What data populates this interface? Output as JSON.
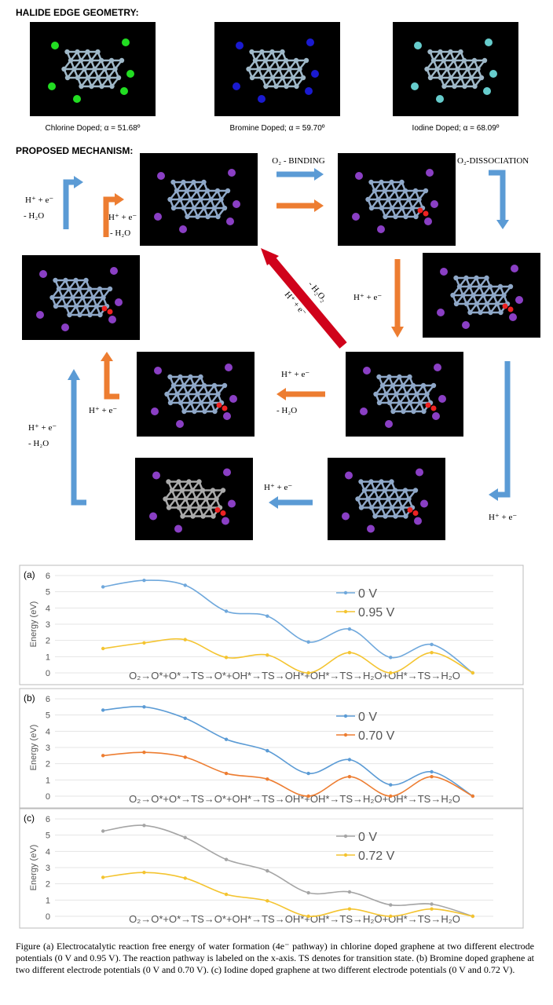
{
  "header": {
    "title": "HALIDE EDGE GEOMETRY:",
    "panels": [
      {
        "caption": "Chlorine Doped; α = 51.68º"
      },
      {
        "caption": "Bromine Doped; α = 59.70º"
      },
      {
        "caption": "Iodine Doped; α = 68.09º"
      }
    ]
  },
  "mechanism": {
    "title": "PROPOSED MECHANISM:",
    "labels": [
      "O₂ - BINDING",
      "O₂-DISSOCIATION",
      "H⁺ + e⁻",
      "- H₂O",
      "H⁺ + e⁻",
      "- H₂O",
      "H⁺ + e⁻",
      "- H₂O₂",
      "H⁺ + e⁻",
      "H⁺ + e⁻",
      "- H₂O",
      "H⁺ + e⁻",
      "H⁺ + e⁻",
      "- H₂O",
      "H⁺ + e⁻",
      "H⁺ + e⁻"
    ]
  },
  "chart_data": [
    {
      "type": "line",
      "panel_label": "(a)",
      "ylabel": "Energy (eV)",
      "xlabel": "O₂→O*+O*→TS→O*+OH*→TS→OH*+OH*→TS→H₂O+OH*→TS→H₂O",
      "categories": [
        null,
        null,
        null,
        null,
        null,
        null,
        null,
        null,
        null,
        null
      ],
      "series": [
        {
          "name": "0 V",
          "color": "#6fa8dc",
          "values": [
            5.3,
            5.7,
            5.4,
            3.8,
            3.5,
            1.9,
            2.7,
            0.95,
            1.75,
            0
          ]
        },
        {
          "name": "0.95 V",
          "color": "#f4c430",
          "values": [
            1.5,
            1.85,
            2.05,
            0.95,
            1.1,
            0,
            1.25,
            0,
            1.25,
            0
          ]
        }
      ],
      "ylim": [
        0,
        6
      ],
      "yticks": [
        0,
        1,
        2,
        3,
        4,
        5,
        6
      ],
      "grid": true
    },
    {
      "type": "line",
      "panel_label": "(b)",
      "ylabel": "Energy (eV)",
      "xlabel": "O₂→O*+O*→TS→O*+OH*→TS→OH*+OH*→TS→H₂O+OH*→TS→H₂O",
      "categories": [
        null,
        null,
        null,
        null,
        null,
        null,
        null,
        null,
        null,
        null
      ],
      "series": [
        {
          "name": "0 V",
          "color": "#5b9bd5",
          "values": [
            5.3,
            5.5,
            4.8,
            3.5,
            2.8,
            1.4,
            2.25,
            0.7,
            1.5,
            0
          ]
        },
        {
          "name": "0.70 V",
          "color": "#ed7d31",
          "values": [
            2.5,
            2.7,
            2.4,
            1.4,
            1.05,
            0,
            1.2,
            0,
            1.2,
            0
          ]
        }
      ],
      "ylim": [
        0,
        6
      ],
      "yticks": [
        0,
        1,
        2,
        3,
        4,
        5,
        6
      ],
      "grid": true
    },
    {
      "type": "line",
      "panel_label": "(c)",
      "ylabel": "Energy (eV)",
      "xlabel": "O₂→O*+O*→TS→O*+OH*→TS→OH*+OH*→TS→H₂O+OH*→TS→H₂O",
      "categories": [
        null,
        null,
        null,
        null,
        null,
        null,
        null,
        null,
        null,
        null
      ],
      "series": [
        {
          "name": "0 V",
          "color": "#a5a5a5",
          "values": [
            5.25,
            5.6,
            4.85,
            3.5,
            2.8,
            1.45,
            1.5,
            0.7,
            0.75,
            0
          ]
        },
        {
          "name": "0.72 V",
          "color": "#f4c430",
          "values": [
            2.4,
            2.7,
            2.35,
            1.35,
            0.95,
            0,
            0.45,
            0,
            0.45,
            0
          ]
        }
      ],
      "ylim": [
        0,
        6
      ],
      "yticks": [
        0,
        1,
        2,
        3,
        4,
        5,
        6
      ],
      "grid": true
    }
  ],
  "caption": "Figure (a) Electrocatalytic reaction free energy of water formation (4e⁻ pathway) in chlorine doped graphene at two different electrode potentials (0 V and 0.95 V). The reaction pathway is labeled on the x-axis. TS denotes for transition state.   (b) Bromine doped graphene at two different electrode potentials (0 V and 0.70 V). (c) Iodine doped graphene at two different electrode potentials (0 V and 0.72 V)."
}
